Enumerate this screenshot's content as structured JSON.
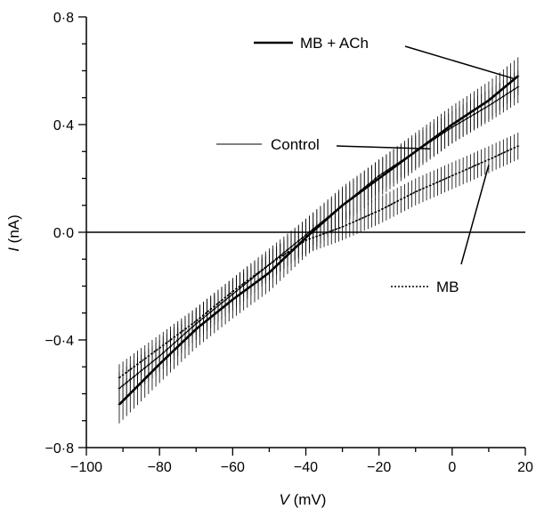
{
  "chart_data": {
    "type": "line",
    "xlabel_symbol": "V",
    "xlabel_unit": " (mV)",
    "ylabel_symbol": "I",
    "ylabel_unit": " (nA)",
    "xlim": [
      -100,
      20
    ],
    "ylim": [
      -0.8,
      0.8
    ],
    "xticks": [
      -100,
      -80,
      -60,
      -40,
      -20,
      0,
      20
    ],
    "xtick_labels": [
      "−100",
      "−80",
      "−60",
      "−40",
      "−20",
      "0",
      "20"
    ],
    "yticks": [
      -0.8,
      -0.4,
      0.0,
      0.4,
      0.8
    ],
    "ytick_labels": [
      "−0·8",
      "−0·4",
      "0·0",
      "0·4",
      "0·8"
    ],
    "zero_line_y": 0.0,
    "series": [
      {
        "name": "MB + ACh",
        "style": "thick",
        "x": [
          -91,
          -80,
          -70,
          -60,
          -50,
          -40,
          -30,
          -20,
          -10,
          0,
          10,
          18
        ],
        "y": [
          -0.64,
          -0.49,
          -0.36,
          -0.25,
          -0.15,
          -0.02,
          0.1,
          0.2,
          0.3,
          0.4,
          0.49,
          0.58
        ],
        "error": 0.07
      },
      {
        "name": "Control",
        "style": "thin",
        "x": [
          -91,
          -80,
          -70,
          -60,
          -50,
          -40,
          -30,
          -20,
          -10,
          0,
          10,
          18
        ],
        "y": [
          -0.58,
          -0.46,
          -0.34,
          -0.23,
          -0.12,
          -0.01,
          0.1,
          0.21,
          0.3,
          0.39,
          0.47,
          0.54
        ],
        "error": 0.06
      },
      {
        "name": "MB",
        "style": "dotted",
        "x": [
          -91,
          -80,
          -70,
          -60,
          -50,
          -40,
          -30,
          -20,
          -10,
          0,
          10,
          18
        ],
        "y": [
          -0.54,
          -0.43,
          -0.33,
          -0.22,
          -0.12,
          -0.03,
          0.02,
          0.08,
          0.15,
          0.21,
          0.27,
          0.32
        ],
        "error": 0.05
      }
    ],
    "annotations": [
      {
        "label": "MB + ACh",
        "series": "MB + ACh",
        "point": [
          17,
          0.57
        ]
      },
      {
        "label": "Control",
        "series": "Control",
        "point": [
          -6,
          0.31
        ]
      },
      {
        "label": "MB",
        "series": "MB",
        "point": [
          10,
          0.25
        ]
      }
    ]
  }
}
